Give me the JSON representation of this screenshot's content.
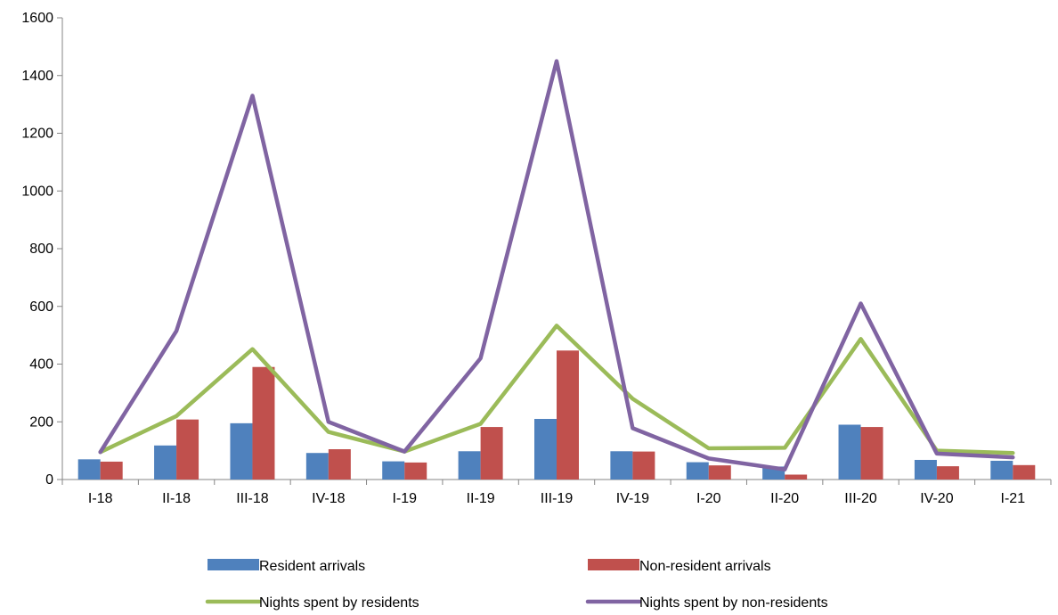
{
  "chart_data": {
    "type": "bar",
    "categories": [
      "I-18",
      "II-18",
      "III-18",
      "IV-18",
      "I-19",
      "II-19",
      "III-19",
      "IV-19",
      "I-20",
      "II-20",
      "III-20",
      "IV-20",
      "I-21"
    ],
    "ylim": [
      0,
      1600
    ],
    "yticks": [
      "0",
      "200",
      "400",
      "600",
      "800",
      "1000",
      "1200",
      "1400",
      "1600"
    ],
    "grid": false,
    "legend_position": "bottom",
    "series": [
      {
        "name": "Resident arrivals",
        "kind": "bar",
        "color": "#4F81BD",
        "values": [
          70,
          118,
          195,
          92,
          63,
          98,
          210,
          98,
          60,
          45,
          190,
          68,
          65
        ]
      },
      {
        "name": "Non-resident arrivals",
        "kind": "bar",
        "color": "#C0504D",
        "values": [
          62,
          208,
          390,
          105,
          59,
          182,
          447,
          97,
          49,
          17,
          182,
          46,
          50
        ]
      },
      {
        "name": "Nights spent by residents",
        "kind": "line",
        "color": "#9BBB59",
        "values": [
          95,
          220,
          452,
          165,
          97,
          193,
          533,
          280,
          108,
          110,
          487,
          100,
          92
        ]
      },
      {
        "name": "Nights spent by non-residents",
        "kind": "line",
        "color": "#8064A2",
        "values": [
          95,
          515,
          1330,
          200,
          97,
          420,
          1450,
          178,
          73,
          35,
          610,
          90,
          77
        ]
      }
    ]
  }
}
